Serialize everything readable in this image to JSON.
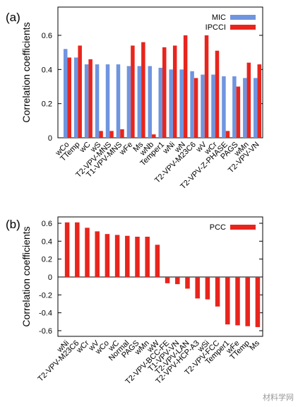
{
  "colors": {
    "mic": "#6f95e0",
    "ipcci": "#e8251d",
    "pcc": "#e8251d",
    "axis": "#000000"
  },
  "watermark": "材料学网",
  "chart_data": [
    {
      "panel": "(a)",
      "type": "bar",
      "ylabel": "Correlation coefficients",
      "ylim": [
        0,
        0.7
      ],
      "yticks": [
        "0",
        "0.2",
        "0.4",
        "0.6"
      ],
      "legend_position": "top-right",
      "categories": [
        "wCo",
        "TTemp",
        "wC",
        "wS",
        "T2-VPV-MNS",
        "T1-VPV-MNS",
        "wFe",
        "Ms",
        "wNb",
        "Temper1",
        "wNi",
        "wN",
        "T2-VPV-M23C6",
        "wV",
        "wCr",
        "T2-VPV-Z-PHASE",
        "PAGS",
        "wMn",
        "T2-VPV-VN"
      ],
      "series": [
        {
          "name": "MIC",
          "color": "#6f95e0",
          "values": [
            0.52,
            0.47,
            0.43,
            0.43,
            0.43,
            0.43,
            0.42,
            0.42,
            0.42,
            0.41,
            0.4,
            0.4,
            0.39,
            0.37,
            0.37,
            0.36,
            0.36,
            0.35,
            0.35
          ]
        },
        {
          "name": "IPCCI",
          "color": "#e8251d",
          "values": [
            0.47,
            0.54,
            0.46,
            0.04,
            0.04,
            0.05,
            0.54,
            0.56,
            0.02,
            0.53,
            0.54,
            0.6,
            0.35,
            0.6,
            0.51,
            0.04,
            0.3,
            0.44,
            0.43
          ]
        }
      ]
    },
    {
      "panel": "(b)",
      "type": "bar",
      "ylabel": "Correlation coefficients",
      "ylim": [
        -0.7,
        0.7
      ],
      "yticks": [
        "-0.6",
        "-0.4",
        "-0.2",
        "0",
        "0.2",
        "0.4",
        "0.6"
      ],
      "legend_position": "top-right",
      "categories": [
        "wNi",
        "T2-VPV-M23C6",
        "wCr",
        "wV",
        "wCo",
        "wC",
        "Normal",
        "PAGS",
        "wMn",
        "wW",
        "T2-VPV-BCC-FE",
        "T1-VPV-VN",
        "T2-VPV-LAN",
        "T2-VPV-HCP-A3",
        "wSi",
        "T2-VPV-FCC",
        "Temper1",
        "wFe",
        "TTemp",
        "Ms"
      ],
      "series": [
        {
          "name": "PCC",
          "color": "#e8251d",
          "values": [
            0.61,
            0.61,
            0.55,
            0.51,
            0.48,
            0.47,
            0.46,
            0.45,
            0.45,
            0.36,
            -0.07,
            -0.08,
            -0.13,
            -0.24,
            -0.25,
            -0.33,
            -0.53,
            -0.54,
            -0.55,
            -0.56
          ]
        }
      ]
    }
  ]
}
